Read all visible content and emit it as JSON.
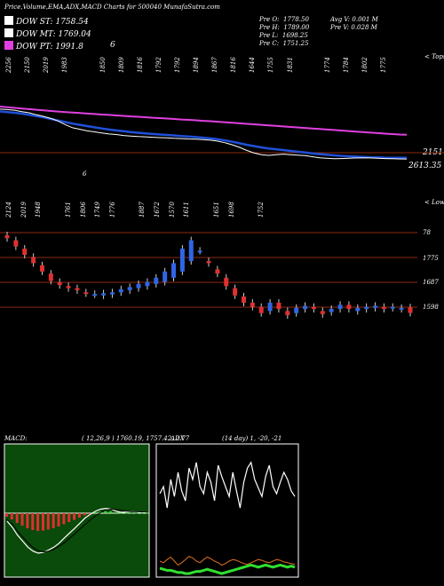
{
  "header": {
    "title": "Price,Volume,EMA,ADX,MACD Charts for 500040 MunafaSutra.com",
    "stats": [
      {
        "label": "Pre O:",
        "value": "1778.50"
      },
      {
        "label": "Pre H:",
        "value": "1789.00"
      },
      {
        "label": "Pre L:",
        "value": "1698.25"
      },
      {
        "label": "Pre C:",
        "value": "1751.25"
      }
    ],
    "volume": [
      {
        "label": "Avg V:",
        "value": "0.001 M"
      },
      {
        "label": "Pre V:",
        "value": "0.028 M"
      }
    ]
  },
  "legend": [
    {
      "label": "DOW ST:",
      "value": "1758.54",
      "color": "#ffffff"
    },
    {
      "label": "DOW MT:",
      "value": "1769.04",
      "color": "#2050d8"
    },
    {
      "label": "DOW PT:",
      "value": "1991.8",
      "color": "#e040e0"
    }
  ],
  "legend_extra": "6",
  "ema_panel": {
    "corner_label": "< Tops",
    "level_label": "2151",
    "price_label": "2613.35",
    "small_label": "6",
    "top_labels": [
      "2256",
      "2150",
      "2019",
      "1983",
      "",
      "1850",
      "1809",
      "1816",
      "1792",
      "1792",
      "1894",
      "1867",
      "1816",
      "1644",
      "1755",
      "1831",
      "",
      "1774",
      "1784",
      "1802",
      "1775"
    ]
  },
  "candle_panel": {
    "corner_label": "< Lows",
    "top_labels": [
      "2124",
      "2019",
      "1948",
      "",
      "1761",
      "1806",
      "1749",
      "1776",
      "",
      "1887",
      "1672",
      "1570",
      "1611",
      "",
      "1651",
      "1698",
      "",
      "1752"
    ],
    "levels": [
      "78",
      "1775",
      "1687",
      "1598"
    ]
  },
  "macd_panel": {
    "title": "MACD:",
    "values": "( 12,26,9 ) 1760.19,  1757.42,  2.77"
  },
  "adx_panel": {
    "title": "ADX",
    "values": "(14 day) 1, -20, -21"
  },
  "colors": {
    "bull": "#2f66e6",
    "bear": "#e03030",
    "dow_pt": "#e040e0",
    "dow_mt": "#2050d8",
    "macd_bg": "#0a4a0a",
    "level_line": "#8b2a10"
  },
  "chart_data": [
    {
      "type": "line",
      "title": "Price EMA",
      "series": [
        {
          "name": "DOW ST",
          "values": [
            2240,
            2236,
            2230,
            2215,
            2205,
            2185,
            2170,
            2150,
            2125,
            2090,
            2060,
            2045,
            2030,
            2020,
            2010,
            2000,
            1995,
            1985,
            1980,
            1975,
            1972,
            1968,
            1965,
            1962,
            1958,
            1955,
            1952,
            1950,
            1946,
            1940,
            1930,
            1915,
            1895,
            1870,
            1840,
            1815,
            1800,
            1793,
            1800,
            1805,
            1800,
            1795,
            1790,
            1780,
            1770,
            1765,
            1760,
            1762,
            1765,
            1768,
            1770,
            1768,
            1765,
            1762,
            1760,
            1759,
            1758
          ]
        },
        {
          "name": "DOW MT",
          "values": [
            2218,
            2212,
            2205,
            2196,
            2185,
            2172,
            2160,
            2145,
            2130,
            2115,
            2100,
            2088,
            2076,
            2064,
            2053,
            2043,
            2034,
            2026,
            2019,
            2012,
            2006,
            2000,
            1995,
            1990,
            1985,
            1980,
            1975,
            1970,
            1964,
            1957,
            1948,
            1937,
            1924,
            1910,
            1895,
            1882,
            1870,
            1860,
            1852,
            1844,
            1836,
            1828,
            1820,
            1812,
            1805,
            1799,
            1793,
            1788,
            1784,
            1781,
            1778,
            1775,
            1773,
            1771,
            1770,
            1769,
            1769
          ]
        },
        {
          "name": "DOW PT",
          "values": [
            2265,
            2258,
            2252,
            2246,
            2240,
            2234,
            2228,
            2222,
            2217,
            2212,
            2207,
            2202,
            2197,
            2193,
            2188,
            2184,
            2179,
            2175,
            2170,
            2166,
            2162,
            2157,
            2153,
            2149,
            2145,
            2140,
            2136,
            2132,
            2127,
            2123,
            2118,
            2113,
            2108,
            2103,
            2098,
            2093,
            2088,
            2083,
            2078,
            2073,
            2068,
            2063,
            2058,
            2053,
            2048,
            2043,
            2038,
            2033,
            2028,
            2023,
            2018,
            2013,
            2008,
            2003,
            1999,
            1995,
            1992
          ]
        }
      ]
    },
    {
      "type": "bar",
      "title": "Daily candles",
      "series": [
        {
          "name": "open",
          "values": [
            2124,
            2100,
            2060,
            2020,
            1980,
            1940,
            1900,
            1880,
            1870,
            1850,
            1840,
            1835,
            1840,
            1850,
            1860,
            1870,
            1880,
            1890,
            1900,
            1920,
            1950,
            2000,
            2050,
            2000,
            1960,
            1920,
            1870,
            1830,
            1800,
            1780,
            1760,
            1800,
            1760,
            1750,
            1770,
            1780,
            1760,
            1755,
            1770,
            1790,
            1760,
            1770,
            1775,
            1780,
            1775,
            1770,
            1778
          ]
        },
        {
          "name": "close",
          "values": [
            2110,
            2070,
            2030,
            1990,
            1950,
            1905,
            1885,
            1870,
            1860,
            1845,
            1842,
            1845,
            1850,
            1865,
            1875,
            1890,
            1900,
            1920,
            1950,
            1990,
            2060,
            2100,
            2050,
            1990,
            1940,
            1880,
            1835,
            1800,
            1780,
            1750,
            1800,
            1770,
            1740,
            1775,
            1785,
            1770,
            1745,
            1770,
            1790,
            1770,
            1775,
            1780,
            1785,
            1770,
            1780,
            1775,
            1751
          ]
        }
      ]
    },
    {
      "type": "line",
      "title": "MACD",
      "series": [
        {
          "name": "MACD",
          "values": [
            -20,
            -35,
            -55,
            -70,
            -85,
            -95,
            -100,
            -98,
            -92,
            -85,
            -75,
            -62,
            -50,
            -38,
            -25,
            -12,
            -3,
            5,
            10,
            12,
            10,
            5,
            2,
            3,
            4,
            3,
            2,
            3
          ]
        },
        {
          "name": "Signal",
          "values": [
            -15,
            -28,
            -45,
            -60,
            -74,
            -86,
            -94,
            -97,
            -95,
            -90,
            -83,
            -74,
            -63,
            -52,
            -40,
            -28,
            -17,
            -7,
            2,
            8,
            10,
            9,
            7,
            5,
            4,
            4,
            3,
            3
          ]
        }
      ]
    },
    {
      "type": "line",
      "title": "ADX",
      "series": [
        {
          "name": "DI",
          "values": [
            40,
            45,
            30,
            50,
            38,
            55,
            42,
            35,
            58,
            50,
            62,
            45,
            40,
            55,
            48,
            35,
            60,
            52,
            45,
            38,
            55,
            42,
            30,
            48,
            58,
            62,
            50,
            44,
            38,
            52,
            60,
            45,
            40,
            48,
            55,
            50,
            42,
            38
          ]
        },
        {
          "name": "ADX",
          "values": [
            20,
            18,
            22,
            25,
            20,
            15,
            18,
            22,
            26,
            24,
            20,
            18,
            22,
            25,
            23,
            20,
            18,
            15,
            17,
            20,
            22,
            21,
            19,
            17,
            16,
            18,
            20,
            22,
            21,
            19,
            18,
            20,
            22,
            21,
            19,
            18,
            17,
            16
          ]
        },
        {
          "name": "DI-",
          "values": [
            10,
            9,
            8,
            8,
            7,
            6,
            6,
            5,
            5,
            6,
            7,
            7,
            8,
            9,
            8,
            7,
            6,
            5,
            6,
            7,
            8,
            9,
            10,
            11,
            12,
            13,
            12,
            11,
            12,
            13,
            12,
            11,
            12,
            13,
            12,
            11,
            12,
            11
          ]
        }
      ]
    }
  ]
}
